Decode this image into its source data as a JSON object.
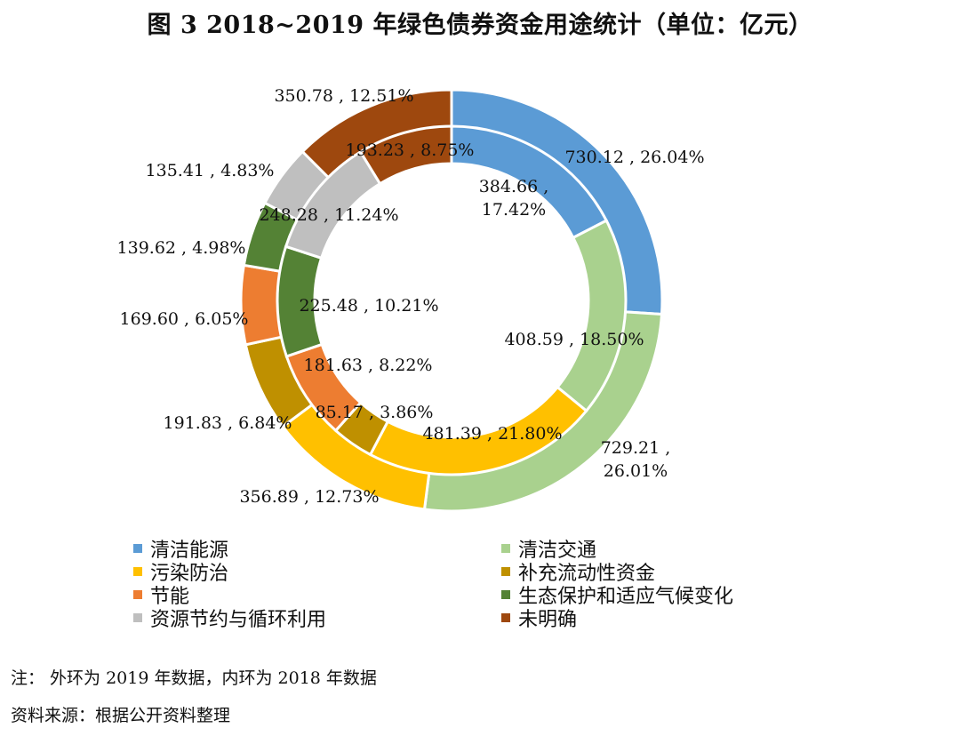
{
  "title": "图 3 2018~2019 年绿色债券资金用途统计（单位：亿元）",
  "note": "注： 外环为 2019 年数据，内环为 2018 年数据",
  "source": "资料来源：根据公开资料整理",
  "chart_data": {
    "type": "donut",
    "categories": [
      "清洁能源",
      "清洁交通",
      "污染防治",
      "补充流动性资金",
      "节能",
      "生态保护和适应气候变化",
      "资源节约与循环利用",
      "未明确"
    ],
    "colors": [
      "#5b9bd5",
      "#a9d18e",
      "#ffc000",
      "#bf9000",
      "#ed7d31",
      "#548235",
      "#bfbfbf",
      "#9e480e"
    ],
    "series": [
      {
        "ring": "outer",
        "values": [
          730.12,
          729.21,
          356.89,
          191.83,
          169.6,
          139.62,
          135.41,
          350.78
        ],
        "percents": [
          26.04,
          26.01,
          12.73,
          6.84,
          6.05,
          4.98,
          4.83,
          12.51
        ],
        "labels": [
          [
            "730.12 , 26.04%"
          ],
          [
            "729.21 ,",
            "26.01%"
          ],
          [
            "356.89 , 12.73%"
          ],
          [
            "191.83 , 6.84%"
          ],
          [
            "169.60 , 6.05%"
          ],
          [
            "139.62 , 4.98%"
          ],
          [
            "135.41 , 4.83%"
          ],
          [
            "350.78 , 12.51%"
          ]
        ]
      },
      {
        "ring": "inner",
        "values": [
          384.66,
          408.59,
          481.39,
          85.17,
          181.63,
          225.48,
          248.28,
          193.23
        ],
        "percents": [
          17.42,
          18.5,
          21.8,
          3.86,
          8.22,
          10.21,
          11.24,
          8.75
        ],
        "labels": [
          [
            "384.66 ,",
            "17.42%"
          ],
          [
            "408.59 , 18.50%"
          ],
          [
            "481.39 , 21.80%"
          ],
          [
            "85.17 , 3.86%"
          ],
          [
            "181.63 , 8.22%"
          ],
          [
            "225.48 , 10.21%"
          ],
          [
            "248.28 , 11.24%"
          ],
          [
            "193.23 , 8.75%"
          ]
        ]
      }
    ],
    "legend_position": "bottom"
  }
}
